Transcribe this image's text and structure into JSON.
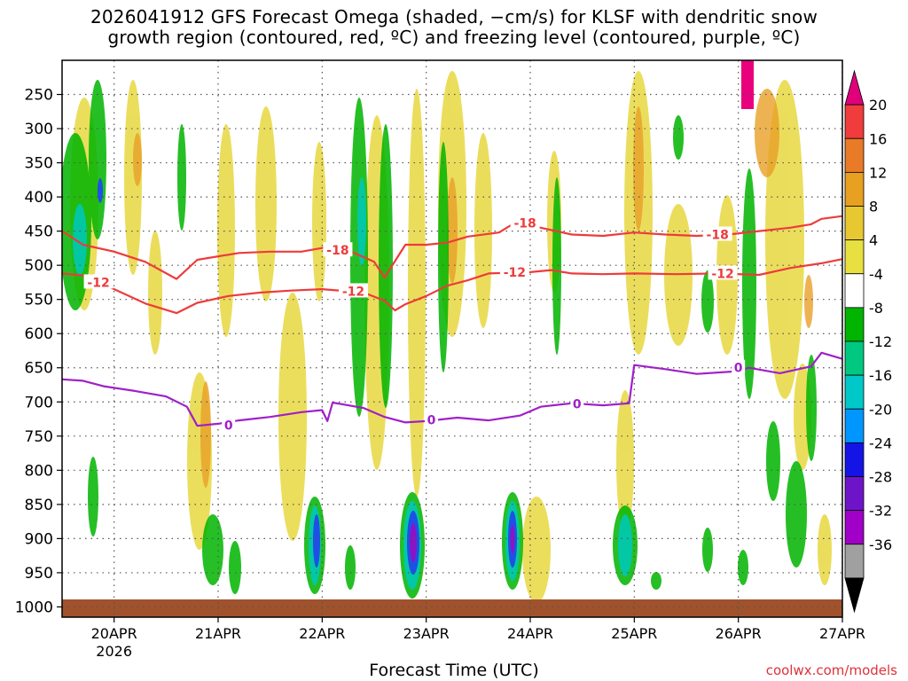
{
  "title_line1": "2026041912 GFS Forecast Omega (shaded, −cm/s) for KLSF with dendritic snow",
  "title_line2": "growth region (contoured, red, ºC) and freezing level (contoured, purple, ºC)",
  "credit": "coolwx.com/models",
  "chart_data": {
    "type": "heatmap",
    "xlabel": "Forecast Time (UTC)",
    "ylabel": "",
    "x_ticks": [
      "20APR",
      "21APR",
      "22APR",
      "23APR",
      "24APR",
      "25APR",
      "26APR",
      "27APR"
    ],
    "x_year": "2026",
    "x_range_days": [
      -0.5,
      7.0
    ],
    "y_ticks": [
      250,
      300,
      350,
      400,
      450,
      500,
      550,
      600,
      650,
      700,
      750,
      800,
      850,
      900,
      950,
      1000
    ],
    "y_range_hpa": [
      200,
      1015
    ],
    "colorbar": {
      "labels": [
        20,
        16,
        12,
        8,
        4,
        -4,
        -8,
        -12,
        -16,
        -20,
        -24,
        -28,
        -32,
        -36
      ],
      "colors": [
        "#e0007c",
        "#f03c3c",
        "#e87a28",
        "#e8a020",
        "#e8c830",
        "#e8e040",
        "#ffffff",
        "#00b400",
        "#00c880",
        "#00c8c8",
        "#0096ff",
        "#1414e6",
        "#6e14c8",
        "#a000c8",
        "#a0a0a0",
        "#000000"
      ]
    },
    "series": [
      {
        "label": "-18",
        "color": "#ee3b3b",
        "points": [
          [
            -0.5,
            450
          ],
          [
            -0.3,
            470
          ],
          [
            0,
            480
          ],
          [
            0.3,
            495
          ],
          [
            0.6,
            520
          ],
          [
            0.8,
            492
          ],
          [
            1.2,
            482
          ],
          [
            1.5,
            480
          ],
          [
            1.8,
            480
          ],
          [
            2.1,
            472
          ],
          [
            2.25,
            478
          ],
          [
            2.5,
            495
          ],
          [
            2.6,
            518
          ],
          [
            2.8,
            470
          ],
          [
            3.0,
            470
          ],
          [
            3.2,
            467
          ],
          [
            3.4,
            458
          ],
          [
            3.7,
            452
          ],
          [
            3.85,
            438
          ],
          [
            4.1,
            445
          ],
          [
            4.4,
            455
          ],
          [
            4.7,
            457
          ],
          [
            5.0,
            452
          ],
          [
            5.3,
            455
          ],
          [
            5.6,
            457
          ],
          [
            5.9,
            455
          ],
          [
            6.2,
            450
          ],
          [
            6.5,
            445
          ],
          [
            6.7,
            440
          ],
          [
            6.8,
            432
          ],
          [
            7.0,
            428
          ]
        ],
        "labels_at": [
          [
            2.15,
            478
          ],
          [
            3.95,
            438
          ],
          [
            5.8,
            455
          ]
        ]
      },
      {
        "label": "-12",
        "color": "#ee3b3b",
        "points": [
          [
            -0.5,
            512
          ],
          [
            -0.3,
            515
          ],
          [
            -0.1,
            528
          ],
          [
            0.3,
            556
          ],
          [
            0.6,
            570
          ],
          [
            0.8,
            555
          ],
          [
            1.1,
            545
          ],
          [
            1.4,
            540
          ],
          [
            1.7,
            537
          ],
          [
            2.0,
            535
          ],
          [
            2.4,
            540
          ],
          [
            2.6,
            552
          ],
          [
            2.7,
            566
          ],
          [
            2.8,
            557
          ],
          [
            3.0,
            545
          ],
          [
            3.2,
            530
          ],
          [
            3.4,
            522
          ],
          [
            3.6,
            512
          ],
          [
            4.0,
            510
          ],
          [
            4.2,
            507
          ],
          [
            4.4,
            512
          ],
          [
            4.7,
            513
          ],
          [
            5.0,
            512
          ],
          [
            5.4,
            513
          ],
          [
            5.8,
            512
          ],
          [
            6.2,
            514
          ],
          [
            6.5,
            504
          ],
          [
            6.8,
            497
          ],
          [
            7.0,
            491
          ]
        ],
        "labels_at": [
          [
            -0.15,
            525
          ],
          [
            2.3,
            538
          ],
          [
            3.85,
            510
          ],
          [
            5.85,
            512
          ]
        ]
      },
      {
        "label": "0",
        "color": "#a020c8",
        "points": [
          [
            -0.5,
            667
          ],
          [
            -0.3,
            669
          ],
          [
            -0.1,
            677
          ],
          [
            0.2,
            684
          ],
          [
            0.5,
            692
          ],
          [
            0.7,
            707
          ],
          [
            0.8,
            735
          ],
          [
            1.0,
            732
          ],
          [
            1.2,
            727
          ],
          [
            1.5,
            722
          ],
          [
            1.8,
            715
          ],
          [
            2.0,
            712
          ],
          [
            2.05,
            728
          ],
          [
            2.1,
            701
          ],
          [
            2.4,
            709
          ],
          [
            2.6,
            722
          ],
          [
            2.8,
            730
          ],
          [
            3.0,
            728
          ],
          [
            3.3,
            723
          ],
          [
            3.6,
            727
          ],
          [
            3.9,
            720
          ],
          [
            4.1,
            707
          ],
          [
            4.4,
            702
          ],
          [
            4.7,
            705
          ],
          [
            4.95,
            702
          ],
          [
            5.0,
            646
          ],
          [
            5.3,
            652
          ],
          [
            5.6,
            659
          ],
          [
            6.0,
            655
          ],
          [
            6.1,
            650
          ],
          [
            6.4,
            658
          ],
          [
            6.7,
            648
          ],
          [
            6.8,
            628
          ],
          [
            7.0,
            637
          ]
        ],
        "labels_at": [
          [
            1.1,
            734
          ],
          [
            3.05,
            726
          ],
          [
            4.45,
            703
          ],
          [
            6.0,
            650
          ]
        ]
      }
    ]
  }
}
